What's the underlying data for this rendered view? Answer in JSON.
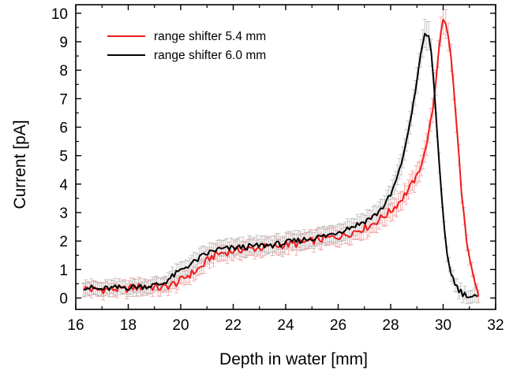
{
  "chart_data": {
    "type": "line",
    "title": "",
    "xlabel": "Depth in water [mm]",
    "ylabel": "Current [pA]",
    "xlim": [
      16,
      32
    ],
    "ylim": [
      -0.4,
      10.3
    ],
    "xticks": [
      16,
      18,
      20,
      22,
      24,
      26,
      28,
      30,
      32
    ],
    "yticks": [
      0,
      1,
      2,
      3,
      4,
      5,
      6,
      7,
      8,
      9,
      10
    ],
    "grid": false,
    "legend_position": "top-left",
    "error_bars": true,
    "series": [
      {
        "name": "range shifter 5.4 mm",
        "color": "#ee1c1c",
        "error_color": "#f2a0a0",
        "points": [
          [
            16.3,
            0.35
          ],
          [
            16.6,
            0.3
          ],
          [
            16.9,
            0.28
          ],
          [
            17.2,
            0.3
          ],
          [
            17.5,
            0.32
          ],
          [
            17.8,
            0.3
          ],
          [
            18.1,
            0.35
          ],
          [
            18.4,
            0.38
          ],
          [
            18.7,
            0.4
          ],
          [
            19.0,
            0.38
          ],
          [
            19.3,
            0.35
          ],
          [
            19.6,
            0.45
          ],
          [
            19.9,
            0.55
          ],
          [
            20.2,
            0.75
          ],
          [
            20.5,
            0.9
          ],
          [
            20.8,
            1.1
          ],
          [
            21.1,
            1.4
          ],
          [
            21.4,
            1.55
          ],
          [
            21.7,
            1.6
          ],
          [
            22.0,
            1.65
          ],
          [
            22.3,
            1.7
          ],
          [
            22.6,
            1.72
          ],
          [
            22.9,
            1.75
          ],
          [
            23.2,
            1.78
          ],
          [
            23.5,
            1.8
          ],
          [
            23.8,
            1.85
          ],
          [
            24.1,
            1.88
          ],
          [
            24.4,
            1.9
          ],
          [
            24.7,
            1.95
          ],
          [
            25.0,
            2.0
          ],
          [
            25.3,
            2.05
          ],
          [
            25.6,
            2.1
          ],
          [
            25.9,
            2.15
          ],
          [
            26.2,
            2.2
          ],
          [
            26.5,
            2.3
          ],
          [
            26.8,
            2.4
          ],
          [
            27.1,
            2.5
          ],
          [
            27.4,
            2.65
          ],
          [
            27.7,
            2.85
          ],
          [
            28.0,
            3.05
          ],
          [
            28.3,
            3.35
          ],
          [
            28.6,
            3.7
          ],
          [
            28.9,
            4.1
          ],
          [
            29.1,
            4.5
          ],
          [
            29.3,
            5.1
          ],
          [
            29.45,
            5.8
          ],
          [
            29.6,
            6.6
          ],
          [
            29.72,
            7.6
          ],
          [
            29.82,
            8.6
          ],
          [
            29.92,
            9.4
          ],
          [
            30.0,
            9.75
          ],
          [
            30.1,
            9.6
          ],
          [
            30.2,
            9.2
          ],
          [
            30.3,
            8.4
          ],
          [
            30.4,
            7.4
          ],
          [
            30.5,
            6.2
          ],
          [
            30.6,
            5.0
          ],
          [
            30.7,
            3.8
          ],
          [
            30.8,
            2.8
          ],
          [
            30.9,
            1.9
          ],
          [
            31.0,
            1.3
          ],
          [
            31.1,
            0.9
          ],
          [
            31.2,
            0.5
          ],
          [
            31.3,
            0.2
          ],
          [
            31.35,
            0.05
          ]
        ]
      },
      {
        "name": "range shifter 6.0 mm",
        "color": "#000000",
        "error_color": "#bbbbbb",
        "points": [
          [
            16.3,
            0.4
          ],
          [
            16.6,
            0.35
          ],
          [
            16.9,
            0.3
          ],
          [
            17.2,
            0.33
          ],
          [
            17.5,
            0.35
          ],
          [
            17.8,
            0.36
          ],
          [
            18.1,
            0.38
          ],
          [
            18.4,
            0.4
          ],
          [
            18.7,
            0.42
          ],
          [
            19.0,
            0.45
          ],
          [
            19.3,
            0.5
          ],
          [
            19.6,
            0.7
          ],
          [
            19.9,
            0.9
          ],
          [
            20.2,
            1.1
          ],
          [
            20.5,
            1.25
          ],
          [
            20.8,
            1.45
          ],
          [
            21.1,
            1.6
          ],
          [
            21.4,
            1.7
          ],
          [
            21.7,
            1.72
          ],
          [
            22.0,
            1.75
          ],
          [
            22.3,
            1.78
          ],
          [
            22.6,
            1.8
          ],
          [
            22.9,
            1.82
          ],
          [
            23.2,
            1.85
          ],
          [
            23.5,
            1.87
          ],
          [
            23.8,
            1.9
          ],
          [
            24.1,
            1.95
          ],
          [
            24.4,
            2.0
          ],
          [
            24.7,
            2.05
          ],
          [
            25.0,
            2.1
          ],
          [
            25.3,
            2.15
          ],
          [
            25.6,
            2.2
          ],
          [
            25.9,
            2.3
          ],
          [
            26.2,
            2.4
          ],
          [
            26.5,
            2.5
          ],
          [
            26.8,
            2.6
          ],
          [
            27.1,
            2.75
          ],
          [
            27.4,
            2.9
          ],
          [
            27.7,
            3.2
          ],
          [
            28.0,
            3.6
          ],
          [
            28.2,
            4.1
          ],
          [
            28.4,
            4.7
          ],
          [
            28.6,
            5.5
          ],
          [
            28.8,
            6.5
          ],
          [
            29.0,
            7.6
          ],
          [
            29.15,
            8.6
          ],
          [
            29.3,
            9.25
          ],
          [
            29.45,
            9.2
          ],
          [
            29.55,
            8.6
          ],
          [
            29.65,
            7.5
          ],
          [
            29.75,
            6.1
          ],
          [
            29.85,
            4.7
          ],
          [
            29.95,
            3.4
          ],
          [
            30.05,
            2.3
          ],
          [
            30.15,
            1.5
          ],
          [
            30.3,
            0.9
          ],
          [
            30.45,
            0.5
          ],
          [
            30.6,
            0.3
          ],
          [
            30.75,
            0.15
          ],
          [
            30.9,
            0.1
          ],
          [
            31.05,
            0.05
          ],
          [
            31.2,
            0.05
          ],
          [
            31.3,
            0.05
          ]
        ]
      }
    ]
  }
}
